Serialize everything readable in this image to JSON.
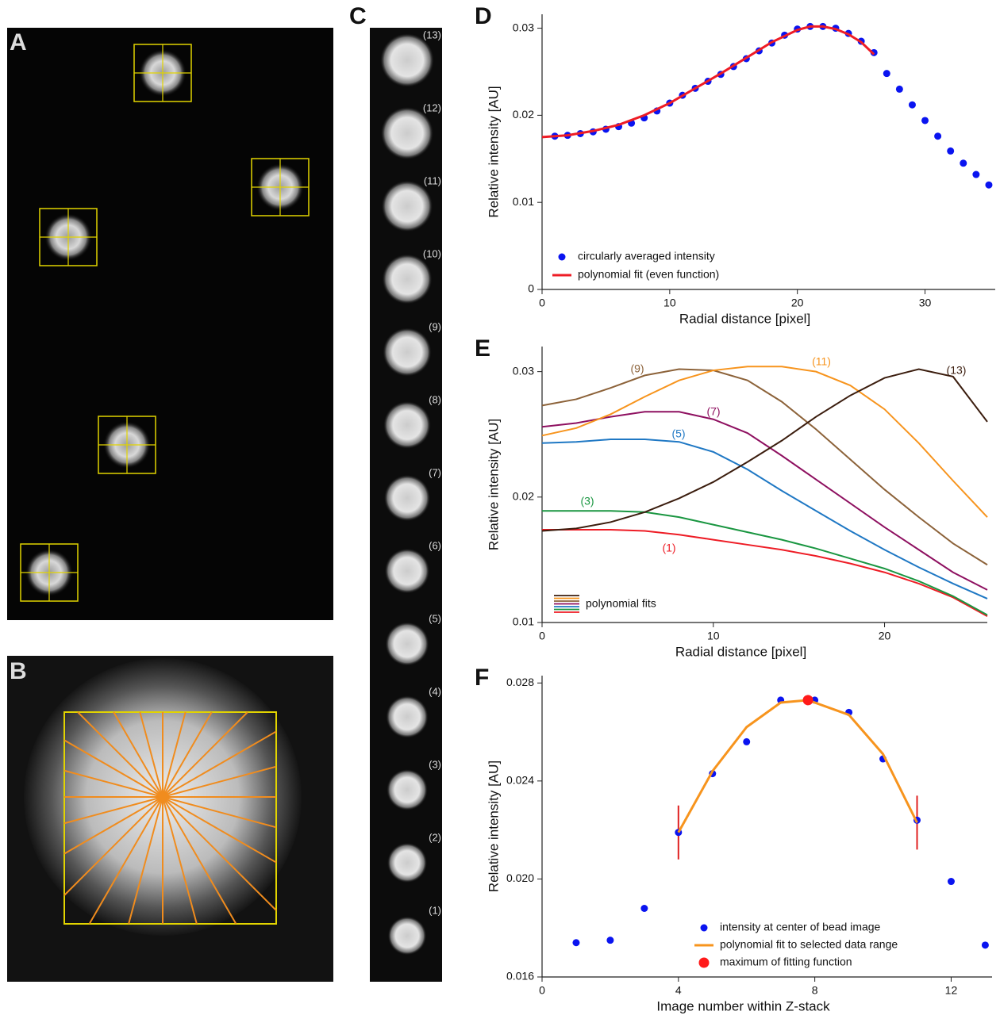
{
  "panel_a": {
    "panel": "A"
  },
  "panel_b": {
    "panel": "B"
  },
  "panel_c": {
    "panel": "C",
    "labels": [
      "(13)",
      "(12)",
      "(11)",
      "(10)",
      "(9)",
      "(8)",
      "(7)",
      "(6)",
      "(5)",
      "(4)",
      "(3)",
      "(2)",
      "(1)"
    ]
  },
  "chart_data": [
    {
      "type": "scatter",
      "panel": "D",
      "y_label": "Relative intensity  [AU]",
      "x_label": "Radial distance  [pixel]",
      "xlim": [
        0,
        35.5
      ],
      "ylim": [
        0,
        0.0316
      ],
      "xticks": [
        0,
        10,
        20,
        30
      ],
      "yticks": [
        0,
        0.01,
        0.02,
        0.03
      ],
      "series": [
        {
          "name": "circularly averaged intensity",
          "color": "#0a14f0",
          "mode": "markers",
          "x": [
            1,
            2,
            3,
            4,
            5,
            6,
            7,
            8,
            9,
            10,
            11,
            12,
            13,
            14,
            15,
            16,
            17,
            18,
            19,
            20,
            21,
            22,
            23,
            24,
            25,
            26,
            27,
            28,
            29,
            30,
            31,
            32,
            33,
            34,
            35
          ],
          "values": [
            0.0176,
            0.0177,
            0.0179,
            0.0181,
            0.0184,
            0.0187,
            0.0191,
            0.0197,
            0.0205,
            0.0214,
            0.0223,
            0.0231,
            0.0239,
            0.0247,
            0.0256,
            0.0265,
            0.0274,
            0.0283,
            0.0292,
            0.0299,
            0.0302,
            0.0302,
            0.03,
            0.0294,
            0.0285,
            0.0272,
            0.0248,
            0.023,
            0.0212,
            0.0194,
            0.0176,
            0.0159,
            0.0145,
            0.0132,
            0.012
          ]
        },
        {
          "name": "polynomial fit (even function)",
          "color": "#ee1c25",
          "mode": "line",
          "x": [
            0,
            2,
            4,
            6,
            8,
            10,
            12,
            14,
            16,
            18,
            20,
            21,
            22,
            23,
            24,
            25,
            26
          ],
          "values": [
            0.0175,
            0.0177,
            0.0182,
            0.0189,
            0.02,
            0.0214,
            0.0231,
            0.0248,
            0.0266,
            0.0284,
            0.0298,
            0.0302,
            0.0302,
            0.0299,
            0.0293,
            0.0284,
            0.027
          ]
        }
      ]
    },
    {
      "type": "line",
      "panel": "E",
      "y_label": "Relative intensity  [AU]",
      "x_label": "Radial distance  [pixel]",
      "legend_label": "polynomial fits",
      "xlim": [
        0,
        26
      ],
      "ylim": [
        0.01,
        0.032
      ],
      "xticks": [
        0,
        10,
        20
      ],
      "yticks": [
        0.01,
        0.02,
        0.03
      ],
      "x": [
        0,
        2,
        4,
        6,
        8,
        10,
        12,
        14,
        16,
        18,
        20,
        22,
        24,
        26
      ],
      "series": [
        {
          "name": "(1)",
          "color": "#ee1c25",
          "values": [
            0.0174,
            0.0174,
            0.0174,
            0.0173,
            0.017,
            0.0166,
            0.0162,
            0.0158,
            0.0153,
            0.0147,
            0.014,
            0.0131,
            0.012,
            0.0105
          ]
        },
        {
          "name": "(3)",
          "color": "#1a9641",
          "values": [
            0.0189,
            0.0189,
            0.0189,
            0.0188,
            0.0184,
            0.0178,
            0.0172,
            0.0166,
            0.0159,
            0.0151,
            0.0143,
            0.0133,
            0.0121,
            0.0106
          ]
        },
        {
          "name": "(5)",
          "color": "#1f78c4",
          "values": [
            0.0243,
            0.0244,
            0.0246,
            0.0246,
            0.0244,
            0.0236,
            0.0222,
            0.0205,
            0.0189,
            0.0173,
            0.0158,
            0.0144,
            0.0131,
            0.0119
          ]
        },
        {
          "name": "(7)",
          "color": "#8e1060",
          "values": [
            0.0256,
            0.0259,
            0.0264,
            0.0268,
            0.0268,
            0.0262,
            0.0251,
            0.0233,
            0.0214,
            0.0195,
            0.0176,
            0.0158,
            0.014,
            0.0126
          ]
        },
        {
          "name": "(9)",
          "color": "#8c6239",
          "values": [
            0.0273,
            0.0278,
            0.0287,
            0.0297,
            0.0302,
            0.0301,
            0.0293,
            0.0276,
            0.0254,
            0.023,
            0.0206,
            0.0184,
            0.0163,
            0.0146
          ]
        },
        {
          "name": "(11)",
          "color": "#f7941d",
          "values": [
            0.0249,
            0.0255,
            0.0266,
            0.028,
            0.0293,
            0.0301,
            0.0304,
            0.0304,
            0.03,
            0.0289,
            0.027,
            0.0243,
            0.0213,
            0.0184
          ]
        },
        {
          "name": "(13)",
          "color": "#3b1d0e",
          "values": [
            0.0173,
            0.0175,
            0.018,
            0.0188,
            0.0199,
            0.0212,
            0.0228,
            0.0245,
            0.0264,
            0.0281,
            0.0295,
            0.0302,
            0.0296,
            0.026
          ]
        }
      ]
    },
    {
      "type": "scatter",
      "panel": "F",
      "y_label": "Relative intensity  [AU]",
      "x_label": "Image number within Z-stack",
      "xlim": [
        0,
        13.2
      ],
      "ylim": [
        0.016,
        0.0283
      ],
      "xticks": [
        0,
        4,
        8,
        12
      ],
      "yticks": [
        0.016,
        {
          "value": 0.02,
          "label": "0.020"
        },
        0.024,
        0.028
      ],
      "range_markers": {
        "x": [
          4,
          11
        ],
        "color": "#e02020"
      },
      "series": [
        {
          "name": "intensity at center of bead image",
          "color": "#0a14f0",
          "mode": "markers",
          "x": [
            1,
            2,
            3,
            4,
            5,
            6,
            7,
            8,
            9,
            10,
            11,
            12,
            13
          ],
          "values": [
            0.0174,
            0.0175,
            0.0188,
            0.0219,
            0.0243,
            0.0256,
            0.0273,
            0.0273,
            0.0268,
            0.0249,
            0.0224,
            0.0199,
            0.0173
          ]
        },
        {
          "name": "polynomial fit to selected data range",
          "color": "#f7941d",
          "mode": "line",
          "x": [
            4,
            5,
            6,
            7,
            7.8,
            9,
            10,
            11
          ],
          "values": [
            0.0219,
            0.0244,
            0.0262,
            0.0272,
            0.0273,
            0.0267,
            0.0251,
            0.0223
          ]
        },
        {
          "name": "maximum of fitting function",
          "color": "#ff1a1a",
          "mode": "big-marker",
          "x": [
            7.8
          ],
          "values": [
            0.0273
          ]
        }
      ]
    }
  ]
}
